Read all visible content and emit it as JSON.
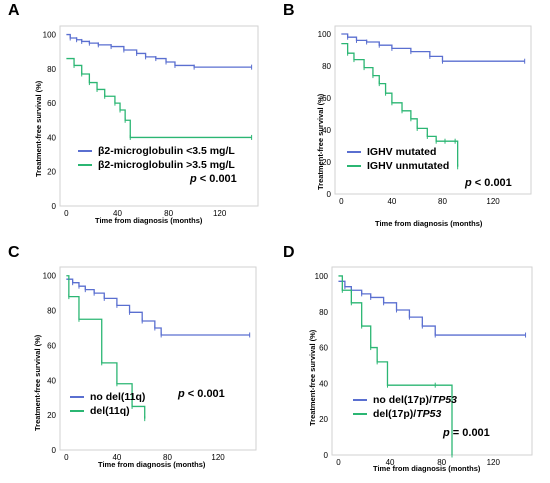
{
  "colors": {
    "blue": "#5a6fd0",
    "green": "#2bb673",
    "box": "#d2d2d2"
  },
  "chart_data": [
    {
      "type": "line",
      "panel": "A",
      "xlabel": "Time from diagnosis (months)",
      "ylabel": "Treatment-free survival (%)",
      "xticks": [
        0,
        40,
        80,
        120
      ],
      "yticks": [
        0,
        20,
        40,
        60,
        80,
        100
      ],
      "xlim": [
        -5,
        150
      ],
      "ylim": [
        0,
        105
      ],
      "p_prefix": "p",
      "p_suffix": " < 0.001",
      "series": [
        {
          "name": "β2-microglobulin <3.5 mg/L",
          "color": "#5a6fd0",
          "x": [
            0,
            3,
            8,
            12,
            18,
            25,
            35,
            45,
            55,
            62,
            70,
            78,
            85,
            100,
            145
          ],
          "y": [
            100,
            98,
            97,
            96,
            95,
            94,
            93,
            91,
            89,
            87,
            86,
            84,
            82,
            81,
            81
          ]
        },
        {
          "name": "β2-microglobulin >3.5 mg/L",
          "color": "#2bb673",
          "x": [
            0,
            6,
            12,
            18,
            24,
            30,
            38,
            42,
            46,
            50,
            145
          ],
          "y": [
            86,
            82,
            77,
            72,
            68,
            64,
            60,
            56,
            50,
            40,
            40
          ]
        }
      ]
    },
    {
      "type": "line",
      "panel": "B",
      "xlabel": "Time from diagnosis (months)",
      "ylabel": "Treatment-free survival (%)",
      "xticks": [
        0,
        40,
        80,
        120
      ],
      "yticks": [
        0,
        20,
        40,
        60,
        80,
        100
      ],
      "xlim": [
        -5,
        150
      ],
      "ylim": [
        0,
        105
      ],
      "p_prefix": "p",
      "p_suffix": " < 0.001",
      "series": [
        {
          "name": "IGHV mutated",
          "color": "#5a6fd0",
          "x": [
            0,
            5,
            12,
            20,
            30,
            40,
            55,
            70,
            80,
            145
          ],
          "y": [
            100,
            98,
            96,
            95,
            93,
            91,
            89,
            86,
            83,
            83
          ]
        },
        {
          "name": "IGHV unmutated",
          "color": "#2bb673",
          "x": [
            0,
            5,
            10,
            18,
            25,
            30,
            35,
            40,
            48,
            55,
            60,
            68,
            75,
            82,
            90,
            92
          ],
          "y": [
            94,
            88,
            84,
            79,
            74,
            69,
            63,
            57,
            52,
            47,
            41,
            36,
            33,
            33,
            33,
            17
          ]
        }
      ]
    },
    {
      "type": "line",
      "panel": "C",
      "xlabel": "Time from diagnosis (months)",
      "ylabel": "Treatment-free survival (%)",
      "xticks": [
        0,
        40,
        80,
        120
      ],
      "yticks": [
        0,
        20,
        40,
        60,
        80,
        100
      ],
      "xlim": [
        -5,
        150
      ],
      "ylim": [
        0,
        105
      ],
      "p_prefix": "p",
      "p_suffix": " < 0.001",
      "series": [
        {
          "name": "no del(11q)",
          "color": "#5a6fd0",
          "x": [
            0,
            5,
            10,
            15,
            22,
            30,
            40,
            50,
            60,
            70,
            75,
            145
          ],
          "y": [
            98,
            96,
            94,
            92,
            90,
            87,
            83,
            79,
            74,
            70,
            66,
            66
          ]
        },
        {
          "name": "del(11q)",
          "color": "#2bb673",
          "x": [
            0,
            2,
            10,
            28,
            40,
            52,
            62
          ],
          "y": [
            100,
            88,
            75,
            50,
            38,
            25,
            18
          ]
        }
      ]
    },
    {
      "type": "line",
      "panel": "D",
      "xlabel": "Time from diagnosis (months)",
      "ylabel": "Treatment-free survival (%)",
      "xticks": [
        0,
        40,
        80,
        120
      ],
      "yticks": [
        0,
        20,
        40,
        60,
        80,
        100
      ],
      "xlim": [
        -5,
        150
      ],
      "ylim": [
        0,
        105
      ],
      "p_prefix": "p",
      "p_suffix": " = 0.001",
      "series": [
        {
          "name": "no del(17p)/TP53",
          "color": "#5a6fd0",
          "x": [
            0,
            5,
            10,
            18,
            25,
            35,
            45,
            55,
            65,
            75,
            145
          ],
          "y": [
            97,
            94,
            92,
            90,
            88,
            85,
            81,
            77,
            72,
            67,
            67
          ]
        },
        {
          "name": "del(17p)/TP53",
          "color": "#2bb673",
          "x": [
            0,
            3,
            10,
            18,
            25,
            30,
            38,
            75,
            88
          ],
          "y": [
            100,
            92,
            85,
            72,
            60,
            52,
            39,
            39,
            0
          ]
        }
      ]
    }
  ],
  "panels": [
    {
      "letter": "A",
      "legend1": "β2-microglobulin <3.5 mg/L",
      "legend2": "β2-microglobulin >3.5 mg/L",
      "p_prefix": "p",
      "p_suffix": " < 0.001",
      "leg1_pre": "β2-microglobulin <3.5 mg/L",
      "leg1_it": "",
      "leg2_pre": "β2-microglobulin >3.5 mg/L",
      "leg2_it": ""
    },
    {
      "letter": "B",
      "legend1": "IGHV mutated",
      "legend2": "IGHV unmutated",
      "p_prefix": "p",
      "p_suffix": " < 0.001",
      "leg1_pre": "IGHV mutated",
      "leg1_it": "",
      "leg2_pre": "IGHV unmutated",
      "leg2_it": ""
    },
    {
      "letter": "C",
      "legend1": "no del(11q)",
      "legend2": "del(11q)",
      "p_prefix": "p",
      "p_suffix": " < 0.001",
      "leg1_pre": "no del(11q)",
      "leg1_it": "",
      "leg2_pre": "del(11q)",
      "leg2_it": ""
    },
    {
      "letter": "D",
      "legend1": "no del(17p)/TP53",
      "legend2": "del(17p)/TP53",
      "p_prefix": "p",
      "p_suffix": " = 0.001",
      "leg1_pre": "no del(17p)/",
      "leg1_it": "TP53",
      "leg2_pre": "del(17p)/",
      "leg2_it": "TP53"
    }
  ]
}
